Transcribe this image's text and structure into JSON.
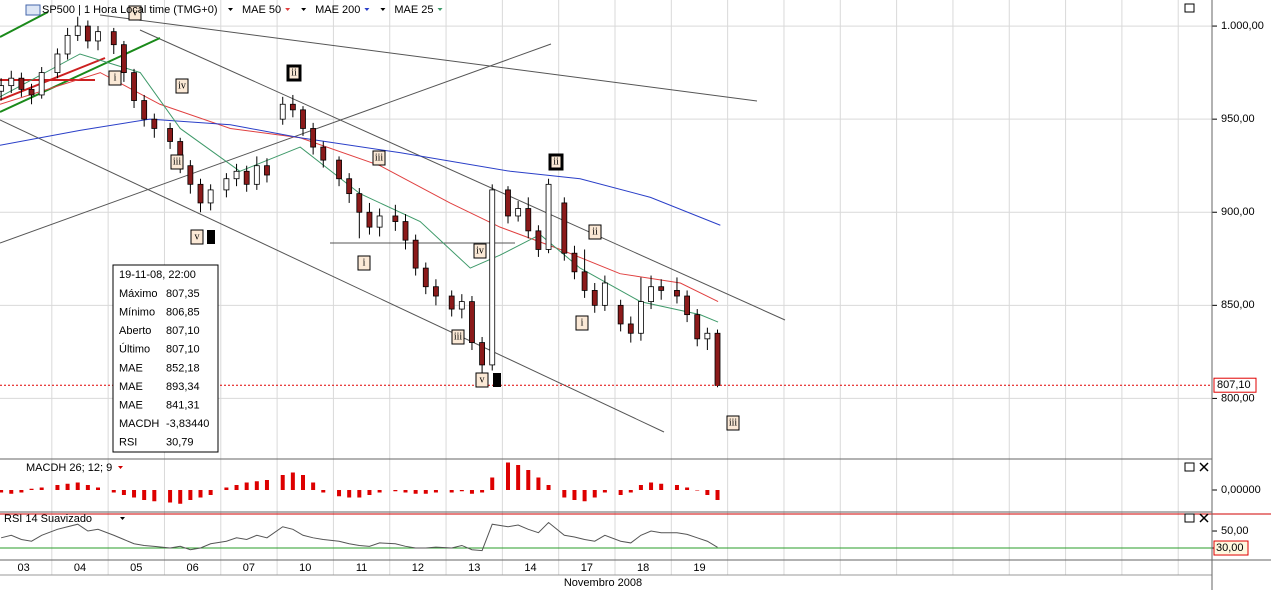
{
  "header": {
    "title": "SP500 | 1 Hora Local time (TMG+0)"
  },
  "chart_data": {
    "type": "candlestick",
    "xlim": [
      0.08,
      21.6
    ],
    "xticks": [
      1,
      2,
      3,
      4,
      5,
      6,
      7,
      8,
      9,
      10,
      11,
      12,
      13,
      14,
      15,
      16,
      17,
      18,
      19,
      20,
      21
    ],
    "categories": [
      "03",
      "04",
      "05",
      "06",
      "07",
      "10",
      "11",
      "12",
      "13",
      "14",
      "17",
      "18",
      "19"
    ],
    "month_label": "Novembro 2008",
    "ylim": [
      768,
      1014
    ],
    "yticks": [
      {
        "value": 1000,
        "label": "1.000,00"
      },
      {
        "value": 950,
        "label": "950,00"
      },
      {
        "value": 900,
        "label": "900,00"
      },
      {
        "value": 850,
        "label": "850,00"
      },
      {
        "value": 800,
        "label": "800,00"
      }
    ],
    "grid": true,
    "up_color": "#ffffff",
    "down_color": "#8b1a1a",
    "candles": {
      "x": [
        0.1,
        0.28,
        0.46,
        0.64,
        0.82,
        1.1,
        1.28,
        1.46,
        1.64,
        1.82,
        2.1,
        2.28,
        2.46,
        2.64,
        2.82,
        3.1,
        3.28,
        3.46,
        3.64,
        3.82,
        4.1,
        4.28,
        4.46,
        4.64,
        4.82,
        5.1,
        5.28,
        5.46,
        5.64,
        5.82,
        6.1,
        6.28,
        6.46,
        6.64,
        6.82,
        7.1,
        7.28,
        7.46,
        7.64,
        7.82,
        8.1,
        8.28,
        8.46,
        8.64,
        8.82,
        9.1,
        9.28,
        9.46,
        9.64,
        9.82,
        10.1,
        10.28,
        10.46,
        10.64,
        10.82,
        11.1,
        11.28,
        11.46,
        11.64,
        11.82,
        12.1,
        12.28,
        12.46,
        12.64,
        12.82
      ],
      "open": [
        965,
        968,
        972,
        966,
        963,
        975,
        985,
        995,
        1000,
        992,
        997,
        990,
        975,
        960,
        950,
        945,
        938,
        925,
        915,
        905,
        912,
        918,
        922,
        915,
        925,
        950,
        958,
        955,
        945,
        935,
        928,
        918,
        910,
        900,
        892,
        898,
        895,
        885,
        870,
        860,
        855,
        848,
        852,
        830,
        818,
        912,
        898,
        902,
        890,
        880,
        905,
        878,
        868,
        858,
        850,
        850,
        840,
        835,
        852,
        860,
        858,
        855,
        845,
        832,
        835
      ],
      "high": [
        972,
        976,
        975,
        969,
        978,
        988,
        999,
        1005,
        1003,
        1000,
        999,
        992,
        977,
        963,
        953,
        948,
        940,
        928,
        918,
        915,
        921,
        926,
        925,
        930,
        929,
        962,
        963,
        957,
        948,
        938,
        930,
        921,
        913,
        905,
        902,
        904,
        899,
        888,
        873,
        864,
        858,
        856,
        855,
        833,
        915,
        914,
        906,
        908,
        893,
        918,
        908,
        882,
        880,
        862,
        866,
        853,
        844,
        865,
        866,
        864,
        865,
        858,
        848,
        838,
        837
      ],
      "low": [
        960,
        964,
        962,
        958,
        961,
        972,
        982,
        992,
        988,
        987,
        985,
        970,
        956,
        946,
        940,
        934,
        921,
        910,
        900,
        901,
        908,
        914,
        911,
        912,
        916,
        947,
        951,
        941,
        931,
        924,
        914,
        905,
        886,
        888,
        887,
        890,
        880,
        866,
        856,
        850,
        844,
        843,
        826,
        813,
        815,
        894,
        895,
        886,
        876,
        878,
        874,
        864,
        854,
        846,
        847,
        836,
        830,
        831,
        848,
        853,
        851,
        841,
        828,
        826,
        806
      ],
      "close": [
        968,
        972,
        966,
        963,
        975,
        985,
        995,
        1000,
        992,
        997,
        990,
        975,
        960,
        950,
        945,
        938,
        925,
        915,
        905,
        912,
        918,
        922,
        915,
        925,
        920,
        958,
        955,
        945,
        935,
        928,
        918,
        910,
        900,
        892,
        898,
        895,
        885,
        870,
        860,
        855,
        848,
        852,
        830,
        818,
        912,
        898,
        902,
        890,
        880,
        915,
        878,
        868,
        858,
        850,
        862,
        840,
        835,
        852,
        860,
        858,
        855,
        845,
        832,
        835,
        807
      ]
    },
    "series": [
      {
        "name": "MAE 50",
        "color": "#e04040",
        "x": [
          0.08,
          1.86,
          2.92,
          4.17,
          5.41,
          6.83,
          8.07,
          8.96,
          10.03,
          11.09,
          12.16,
          12.83
        ],
        "values": [
          958,
          975,
          958,
          945,
          940,
          925,
          905,
          892,
          880,
          867,
          862,
          852
        ]
      },
      {
        "name": "MAE 200",
        "color": "#2a3fc8",
        "x": [
          0.08,
          1.5,
          2.74,
          4.17,
          5.41,
          7.18,
          9.14,
          10.38,
          11.63,
          12.87
        ],
        "values": [
          936,
          944,
          950,
          947,
          940,
          932,
          922,
          918,
          908,
          893
        ]
      },
      {
        "name": "MAE 25",
        "color": "#3f9a6a",
        "x": [
          0.08,
          1.5,
          2.57,
          3.28,
          4.34,
          5.41,
          6.47,
          7.54,
          8.43,
          8.96,
          9.67,
          10.38,
          11.45,
          12.51,
          12.83
        ],
        "values": [
          962,
          985,
          975,
          945,
          922,
          935,
          910,
          895,
          870,
          877,
          888,
          870,
          852,
          845,
          841
        ]
      }
    ],
    "last_price": {
      "value": 807.1,
      "label": "807,10"
    },
    "annotations": [
      "v",
      "i",
      "iv",
      "iii",
      "v",
      "ii",
      "iii",
      "i",
      "iv",
      "iii",
      "v",
      "ii",
      "ii",
      "i",
      "iii"
    ],
    "info_box": {
      "date": "19-11-08, 22:00",
      "rows": [
        {
          "label": "Máximo",
          "value": "807,35",
          "color": "#000000"
        },
        {
          "label": "Mínimo",
          "value": "806,85",
          "color": "#000000"
        },
        {
          "label": "Aberto",
          "value": "807,10",
          "color": "#000000"
        },
        {
          "label": "Último",
          "value": "807,10",
          "color": "#000000"
        },
        {
          "label": "MAE",
          "value": "852,18",
          "color": "#d02020"
        },
        {
          "label": "MAE",
          "value": "893,34",
          "color": "#2a3fc8"
        },
        {
          "label": "MAE",
          "value": "841,31",
          "color": "#3f9a6a"
        },
        {
          "label": "MACDH",
          "value": "-3,83440",
          "color": "#d02020"
        },
        {
          "label": "RSI",
          "value": "30,79",
          "color": "#000000"
        }
      ]
    },
    "macd": {
      "label": "MACDH 26; 12; 9",
      "color": "#dd0000",
      "ylim": [
        -8.8,
        12
      ],
      "yticks": [
        {
          "value": 0,
          "label": "0,00000"
        }
      ],
      "values": [
        -1,
        -1.5,
        -1,
        0.5,
        1,
        2,
        2.5,
        3,
        2,
        1,
        -1,
        -2,
        -3,
        -4,
        -4.5,
        -5,
        -5.5,
        -4,
        -3,
        -2,
        1,
        2,
        3,
        3.5,
        4,
        6,
        7,
        6,
        3,
        -1,
        -2.5,
        -3,
        -3,
        -2,
        -1,
        -0.5,
        -1,
        -1.5,
        -1.5,
        -1,
        -1,
        -0.5,
        -1.5,
        -1,
        5,
        11,
        10,
        8,
        5,
        2,
        -3,
        -4,
        -4.5,
        -3,
        -1,
        -2,
        -1,
        2,
        3,
        2.5,
        2,
        1,
        0,
        -2,
        -4
      ]
    },
    "rsi": {
      "label": "RSI 14 Suavizado",
      "color": "#555555",
      "ylim": [
        15.9,
        71.2
      ],
      "yticks": [
        {
          "value": 50,
          "label": "50,00"
        },
        {
          "value": 30,
          "label": "30,00"
        }
      ],
      "levels": [
        70,
        30
      ],
      "level_colors": [
        "#d00000",
        "#2a9d2a"
      ],
      "values": [
        42,
        45,
        40,
        38,
        45,
        52,
        55,
        58,
        50,
        52,
        45,
        40,
        35,
        33,
        32,
        30,
        32,
        28,
        30,
        35,
        38,
        42,
        40,
        45,
        42,
        55,
        52,
        45,
        42,
        40,
        38,
        35,
        33,
        32,
        36,
        35,
        32,
        30,
        30,
        31,
        30,
        33,
        28,
        27,
        58,
        55,
        57,
        52,
        48,
        60,
        45,
        43,
        40,
        38,
        45,
        38,
        36,
        45,
        50,
        48,
        48,
        46,
        42,
        38,
        30.79
      ]
    }
  }
}
